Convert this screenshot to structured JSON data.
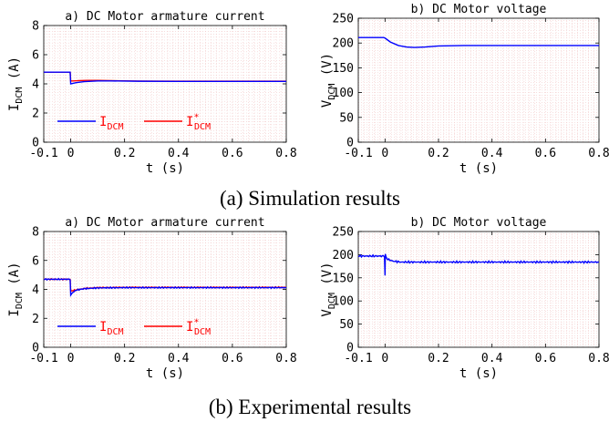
{
  "section_captions": [
    "(a) Simulation results",
    "(b) Experimental results"
  ],
  "chart_data": [
    {
      "id": "sim_current",
      "type": "line",
      "title": "a)  DC Motor armature current",
      "xlabel": "t (s)",
      "ylabel": "I_DCM (A)",
      "xlim": [
        -0.1,
        0.8
      ],
      "ylim": [
        0,
        8
      ],
      "xticks": [
        -0.1,
        0,
        0.2,
        0.4,
        0.6,
        0.8
      ],
      "yticks": [
        0,
        2,
        4,
        6,
        8
      ],
      "grid": "minor-dotted",
      "legend_position": "lower-left",
      "series": [
        {
          "name": "I_DCM",
          "color": "#0000ff",
          "x": [
            -0.1,
            -0.002,
            0.0,
            0.005,
            0.02,
            0.05,
            0.1,
            0.15,
            0.25,
            0.4,
            0.8
          ],
          "y": [
            4.8,
            4.8,
            4.0,
            4.02,
            4.08,
            4.15,
            4.2,
            4.2,
            4.18,
            4.17,
            4.17
          ]
        },
        {
          "name": "I*_DCM",
          "color": "#ff0000",
          "x": [
            -0.1,
            -0.002,
            0.0,
            0.01,
            0.03,
            0.06,
            0.1,
            0.15,
            0.25,
            0.4,
            0.8
          ],
          "y": [
            4.8,
            4.8,
            4.2,
            4.2,
            4.22,
            4.24,
            4.24,
            4.22,
            4.19,
            4.18,
            4.18
          ]
        }
      ]
    },
    {
      "id": "sim_voltage",
      "type": "line",
      "title": "b)  DC Motor voltage",
      "xlabel": "t (s)",
      "ylabel": "V_DCM (V)",
      "xlim": [
        -0.1,
        0.8
      ],
      "ylim": [
        0,
        250
      ],
      "xticks": [
        -0.1,
        0,
        0.2,
        0.4,
        0.6,
        0.8
      ],
      "yticks": [
        0,
        50,
        100,
        150,
        200,
        250
      ],
      "grid": "minor-dotted",
      "series": [
        {
          "name": "",
          "color": "#0000ff",
          "x": [
            -0.1,
            -0.005,
            0.0,
            0.02,
            0.05,
            0.08,
            0.11,
            0.15,
            0.2,
            0.3,
            0.5,
            0.8
          ],
          "y": [
            211,
            211,
            210,
            202,
            195,
            192,
            191,
            192,
            194,
            195,
            195,
            195
          ]
        }
      ]
    },
    {
      "id": "exp_current",
      "type": "line",
      "title": "a)  DC Motor armature current",
      "xlabel": "t (s)",
      "ylabel": "I_DCM (A)",
      "xlim": [
        -0.1,
        0.8
      ],
      "ylim": [
        0,
        8
      ],
      "xticks": [
        -0.1,
        0,
        0.2,
        0.4,
        0.6,
        0.8
      ],
      "yticks": [
        0,
        2,
        4,
        6,
        8
      ],
      "grid": "minor-dotted",
      "legend_position": "lower-left",
      "series": [
        {
          "name": "I_DCM",
          "color": "#0000ff",
          "x": [
            -0.1,
            -0.002,
            0.0,
            0.005,
            0.02,
            0.05,
            0.1,
            0.2,
            0.4,
            0.8
          ],
          "y": [
            4.7,
            4.7,
            3.6,
            3.75,
            3.95,
            4.05,
            4.1,
            4.12,
            4.12,
            4.12
          ]
        },
        {
          "name": "I*_DCM",
          "color": "#ff0000",
          "x": [
            -0.1,
            -0.002,
            0.0,
            0.01,
            0.03,
            0.06,
            0.1,
            0.2,
            0.4,
            0.8
          ],
          "y": [
            4.7,
            4.7,
            3.9,
            3.92,
            4.0,
            4.08,
            4.12,
            4.14,
            4.14,
            4.14
          ]
        }
      ]
    },
    {
      "id": "exp_voltage",
      "type": "line",
      "title": "b)  DC Motor voltage",
      "xlabel": "t (s)",
      "ylabel": "V_DCM (V)",
      "xlim": [
        -0.1,
        0.8
      ],
      "ylim": [
        0,
        250
      ],
      "xticks": [
        -0.1,
        0,
        0.2,
        0.4,
        0.6,
        0.8
      ],
      "yticks": [
        0,
        50,
        100,
        150,
        200,
        250
      ],
      "grid": "minor-dotted",
      "series": [
        {
          "name": "",
          "color": "#0000ff",
          "x": [
            -0.1,
            -0.002,
            0.0,
            0.001,
            0.003,
            0.01,
            0.03,
            0.06,
            0.1,
            0.2,
            0.4,
            0.6,
            0.8
          ],
          "y": [
            197,
            197,
            155,
            200,
            195,
            190,
            186,
            184,
            184,
            184,
            184,
            184,
            184
          ]
        }
      ]
    }
  ]
}
